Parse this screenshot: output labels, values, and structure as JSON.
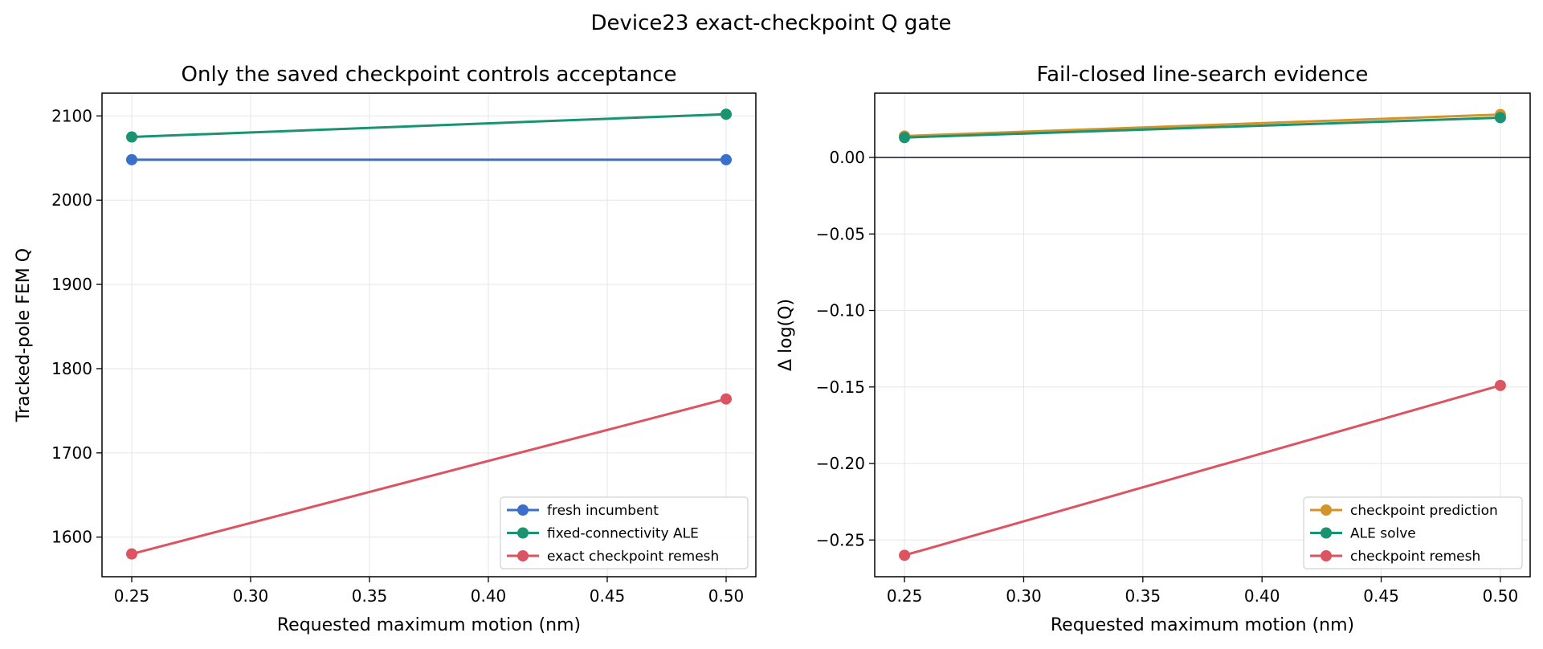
{
  "figure": {
    "title": "Device23 exact-checkpoint Q gate"
  },
  "colors": {
    "blue": "#3a6fca",
    "green": "#1a9470",
    "red": "#dc5461",
    "orange": "#d4942a",
    "grid": "#e6e6e6",
    "zero_line": "#1f2a36"
  },
  "chart_data": [
    {
      "type": "line",
      "title": "Only the saved checkpoint controls acceptance",
      "xlabel": "Requested maximum motion (nm)",
      "ylabel": "Tracked-pole FEM Q",
      "x": [
        0.25,
        0.5
      ],
      "xlim": [
        0.2375,
        0.5125
      ],
      "ylim": [
        1553,
        2127
      ],
      "xticks": [
        0.25,
        0.3,
        0.35,
        0.4,
        0.45,
        0.5
      ],
      "xtick_labels": [
        "0.25",
        "0.30",
        "0.35",
        "0.40",
        "0.45",
        "0.50"
      ],
      "yticks": [
        1600,
        1700,
        1800,
        1900,
        2000,
        2100
      ],
      "ytick_labels": [
        "1600",
        "1700",
        "1800",
        "1900",
        "2000",
        "2100"
      ],
      "grid": true,
      "legend_position": "lower right",
      "series": [
        {
          "name": "fresh incumbent",
          "color": "#3a6fca",
          "values": [
            2048,
            2048
          ]
        },
        {
          "name": "fixed-connectivity ALE",
          "color": "#1a9470",
          "values": [
            2075,
            2102
          ]
        },
        {
          "name": "exact checkpoint remesh",
          "color": "#dc5461",
          "values": [
            1580,
            1764
          ]
        }
      ]
    },
    {
      "type": "line",
      "title": "Fail-closed line-search evidence",
      "xlabel": "Requested maximum motion (nm)",
      "ylabel": "Δ log(Q)",
      "x": [
        0.25,
        0.5
      ],
      "xlim": [
        0.2375,
        0.5125
      ],
      "ylim": [
        -0.274,
        0.042
      ],
      "xticks": [
        0.25,
        0.3,
        0.35,
        0.4,
        0.45,
        0.5
      ],
      "xtick_labels": [
        "0.25",
        "0.30",
        "0.35",
        "0.40",
        "0.45",
        "0.50"
      ],
      "yticks": [
        0.0,
        -0.05,
        -0.1,
        -0.15,
        -0.2,
        -0.25
      ],
      "ytick_labels": [
        "0.00",
        "−0.05",
        "−0.10",
        "−0.15",
        "−0.20",
        "−0.25"
      ],
      "grid": true,
      "zero_line": true,
      "legend_position": "lower right",
      "series": [
        {
          "name": "checkpoint prediction",
          "color": "#d4942a",
          "values": [
            0.014,
            0.028
          ]
        },
        {
          "name": "ALE solve",
          "color": "#1a9470",
          "values": [
            0.013,
            0.026
          ]
        },
        {
          "name": "checkpoint remesh",
          "color": "#dc5461",
          "values": [
            -0.26,
            -0.149
          ]
        }
      ]
    }
  ]
}
